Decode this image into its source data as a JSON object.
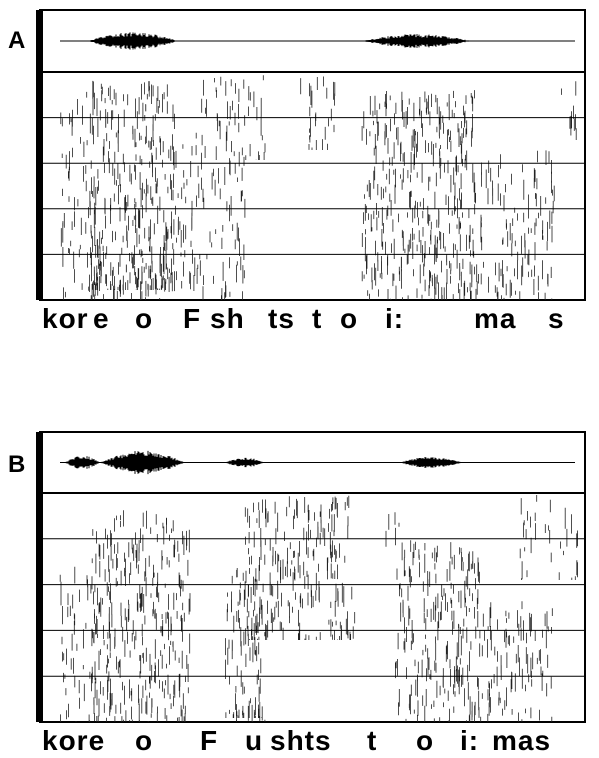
{
  "panels": [
    {
      "label": "A",
      "transcription": [
        "kor",
        "e",
        "o",
        "F",
        "sh",
        "ts",
        "t",
        "o",
        "i:",
        "ma",
        "s"
      ]
    },
    {
      "label": "B",
      "transcription": [
        "kore",
        "o",
        "F",
        "u",
        "shts",
        "t",
        "o",
        "i:",
        "mas"
      ]
    }
  ]
}
